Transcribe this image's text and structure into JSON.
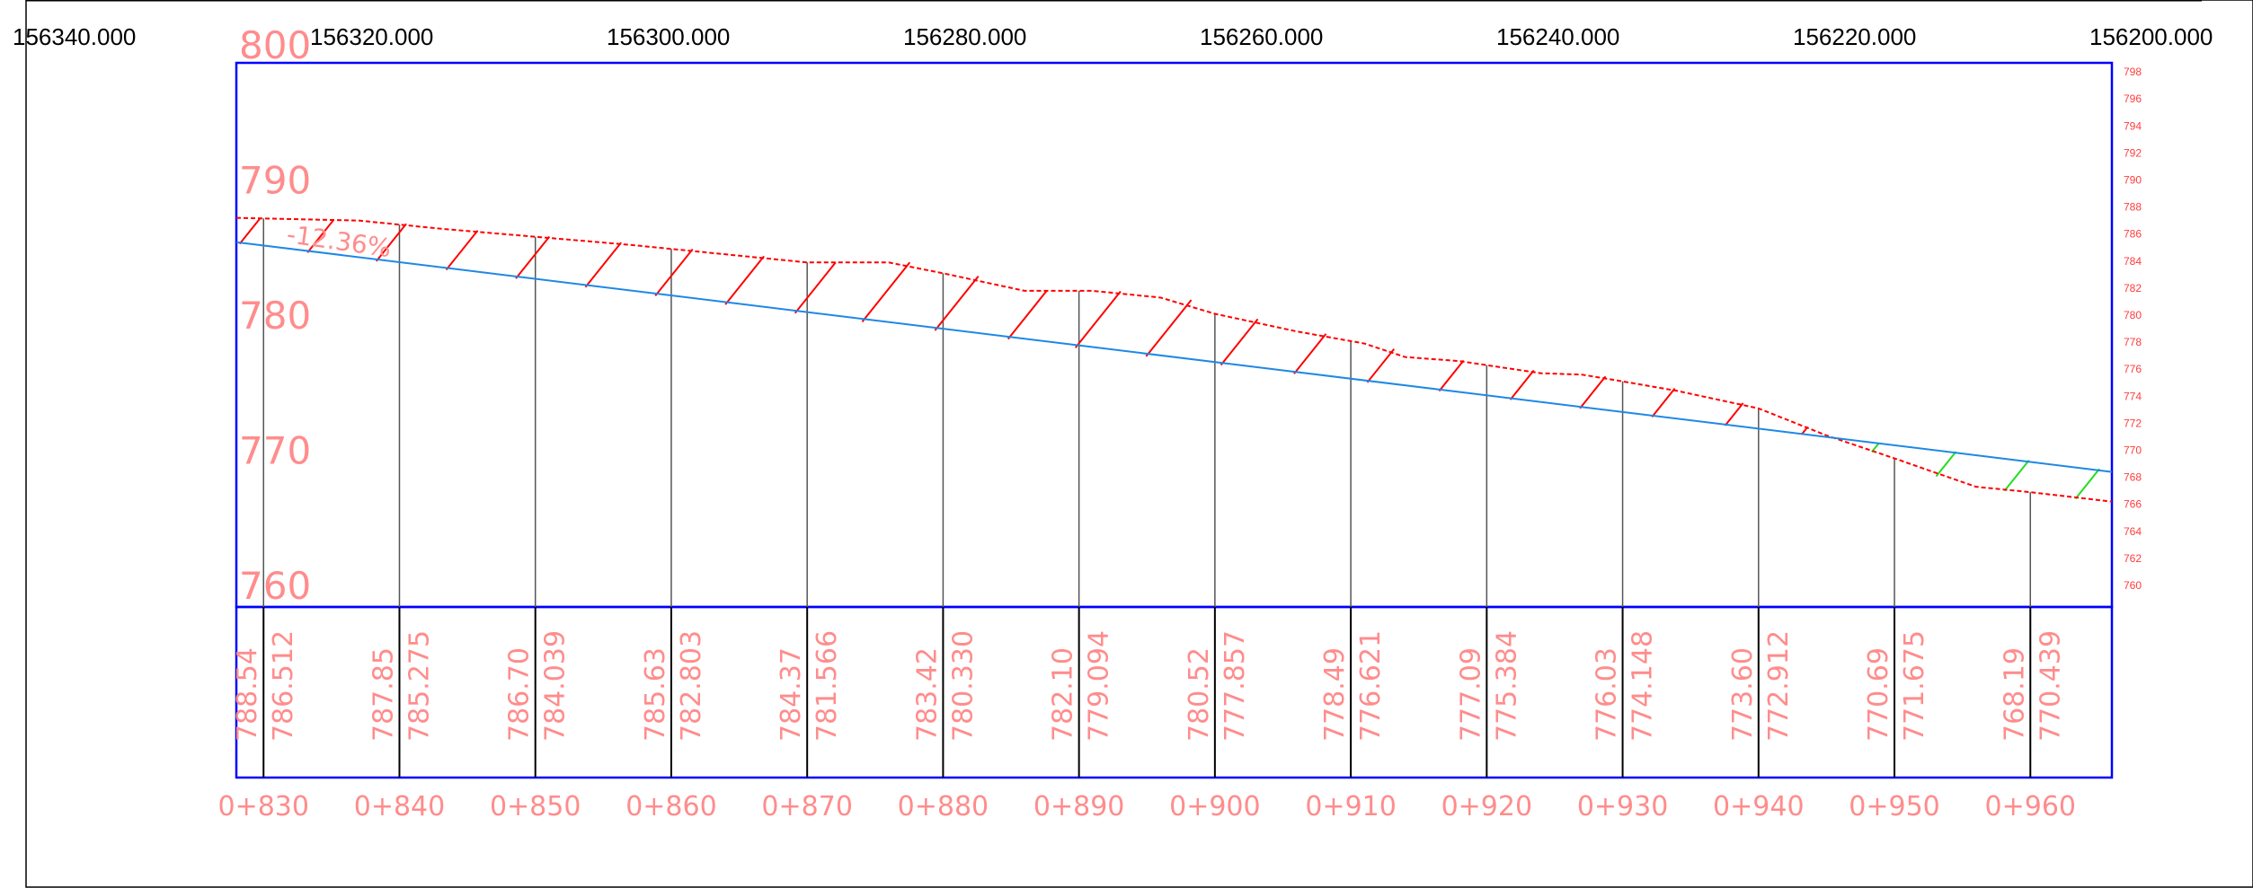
{
  "colors": {
    "frame": "#0000ff",
    "design_line": "#1e88e5",
    "ground_line": "#ff0000",
    "cut_hatch": "#ff0000",
    "fill_hatch": "#22dd22",
    "labels": "#ff8c8c",
    "grid": "#000000"
  },
  "top_axis": {
    "labels": [
      "156340.000",
      "156320.000",
      "156300.000",
      "156280.000",
      "156260.000",
      "156240.000",
      "156220.000",
      "156200.000"
    ]
  },
  "left_elevations": [
    "800",
    "790",
    "780",
    "770",
    "760"
  ],
  "right_elevations": [
    "798",
    "796",
    "794",
    "792",
    "790",
    "788",
    "786",
    "784",
    "782",
    "780",
    "778",
    "776",
    "774",
    "772",
    "770",
    "768",
    "766",
    "764",
    "762",
    "760"
  ],
  "grade_label": "-12.36%",
  "chart_data": {
    "type": "line",
    "xlabel": "",
    "ylabel": "",
    "ylim": [
      760,
      800
    ],
    "stations": [
      "0+830",
      "0+840",
      "0+850",
      "0+860",
      "0+870",
      "0+880",
      "0+890",
      "0+900",
      "0+910",
      "0+920",
      "0+930",
      "0+940",
      "0+950",
      "0+960"
    ],
    "station_chainage": [
      830,
      840,
      850,
      860,
      870,
      880,
      890,
      900,
      910,
      920,
      930,
      940,
      950,
      960
    ],
    "ground_values": [
      "788.54",
      "787.85",
      "786.70",
      "785.63",
      "784.37",
      "783.42",
      "782.10",
      "780.52",
      "778.49",
      "777.09",
      "776.03",
      "773.60",
      "770.69",
      "768.19"
    ],
    "design_values": [
      "786.512",
      "785.275",
      "784.039",
      "782.803",
      "781.566",
      "780.330",
      "779.094",
      "777.857",
      "776.621",
      "775.384",
      "774.148",
      "772.912",
      "771.675",
      "770.439"
    ],
    "series": [
      {
        "name": "",
        "kind": "ground",
        "points": [
          [
            828,
            787.2
          ],
          [
            837,
            787.0
          ],
          [
            843,
            786.4
          ],
          [
            850,
            785.8
          ],
          [
            857,
            785.2
          ],
          [
            865,
            784.4
          ],
          [
            870,
            783.9
          ],
          [
            876,
            783.9
          ],
          [
            880,
            783.1
          ],
          [
            886,
            781.8
          ],
          [
            891,
            781.8
          ],
          [
            896,
            781.3
          ],
          [
            900,
            780.1
          ],
          [
            906,
            778.8
          ],
          [
            911,
            777.9
          ],
          [
            914,
            776.9
          ],
          [
            918,
            776.6
          ],
          [
            920,
            776.3
          ],
          [
            924,
            775.7
          ],
          [
            927,
            775.6
          ],
          [
            930,
            775.1
          ],
          [
            934,
            774.4
          ],
          [
            940,
            773.1
          ],
          [
            945,
            771.1
          ],
          [
            950,
            769.4
          ],
          [
            956,
            767.3
          ],
          [
            960,
            766.9
          ],
          [
            966,
            766.2
          ]
        ]
      },
      {
        "name": "",
        "kind": "design",
        "points": [
          [
            828,
            785.4
          ],
          [
            966,
            768.4
          ]
        ]
      }
    ],
    "x_range": [
      828,
      966
    ]
  }
}
